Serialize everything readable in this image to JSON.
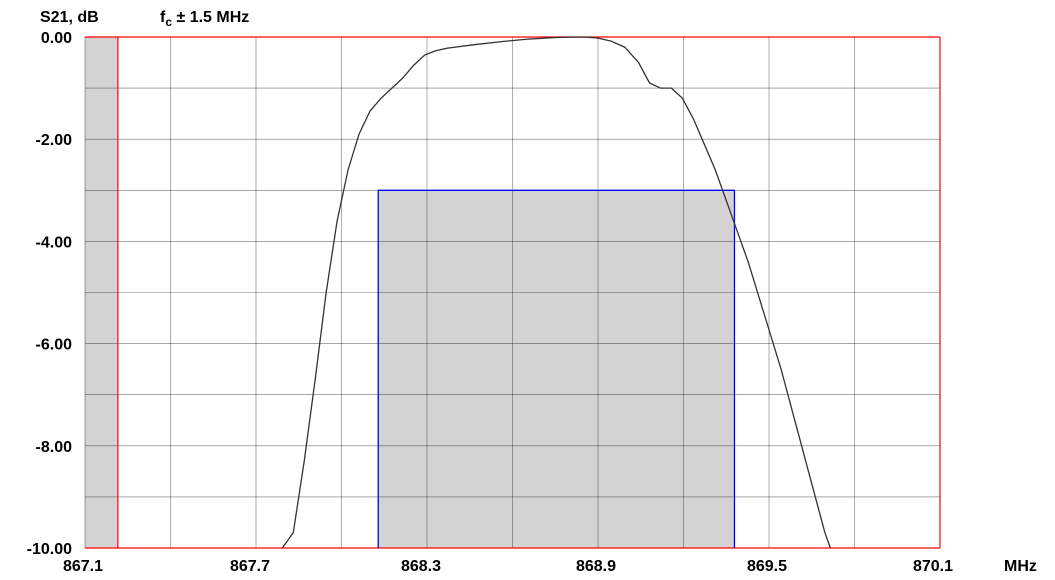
{
  "chart_data": {
    "type": "line",
    "ylabel": "S21, dB",
    "subtitle_prefix": "f",
    "subtitle_sub": "c",
    "subtitle_suffix": " ± 1.5 MHz",
    "xunit": "MHz",
    "xlim": [
      866.98,
      870.1
    ],
    "ylim": [
      -10,
      0
    ],
    "x_tick_labels": [
      "867.1",
      "867.7",
      "868.3",
      "868.9",
      "869.5",
      "870.1"
    ],
    "y_tick_labels": [
      "0.00",
      "-2.00",
      "-4.00",
      "-6.00",
      "-8.00",
      "-10.00"
    ],
    "grid": true,
    "grid_color": "#000000",
    "plot_border_color": "#ff0000",
    "trace_color": "#333333",
    "mask_fill": "#d3d3d3",
    "mask_border_color": "#0000ff",
    "shaded_regions": [
      {
        "x0": 866.98,
        "x1": 867.1,
        "y0": -10,
        "y1": 0
      },
      {
        "x0": 868.05,
        "x1": 869.35,
        "y0": -10,
        "y1": -3
      }
    ],
    "series": [
      {
        "x": [
          867.7,
          867.74,
          867.78,
          867.82,
          867.86,
          867.9,
          867.94,
          867.98,
          868.02,
          868.06,
          868.1,
          868.14,
          868.18,
          868.22,
          868.26,
          868.3,
          868.4,
          868.5,
          868.6,
          868.7,
          868.8,
          868.85,
          868.9,
          868.95,
          869.0,
          869.04,
          869.08,
          869.12,
          869.16,
          869.2,
          869.24,
          869.28,
          869.32,
          869.36,
          869.4,
          869.44,
          869.48,
          869.52,
          869.56,
          869.6,
          869.64,
          869.68,
          869.7
        ],
        "y": [
          -10.3,
          -9.7,
          -8.3,
          -6.7,
          -5.0,
          -3.6,
          -2.6,
          -1.9,
          -1.45,
          -1.2,
          -1.0,
          -0.8,
          -0.55,
          -0.35,
          -0.27,
          -0.22,
          -0.15,
          -0.09,
          -0.04,
          -0.01,
          0.0,
          -0.02,
          -0.08,
          -0.2,
          -0.5,
          -0.9,
          -1.0,
          -1.0,
          -1.2,
          -1.6,
          -2.1,
          -2.6,
          -3.2,
          -3.8,
          -4.4,
          -5.1,
          -5.8,
          -6.5,
          -7.3,
          -8.1,
          -8.9,
          -9.7,
          -10.1
        ]
      }
    ]
  }
}
